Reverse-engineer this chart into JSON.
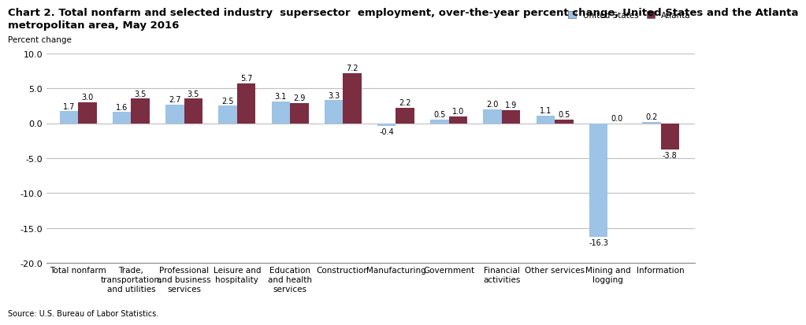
{
  "title_line1": "Chart 2. Total nonfarm and selected industry  supersector  employment, over-the-year percent change, United States and the Atlanta",
  "title_line2": "metropolitan area, May 2016",
  "ylabel": "Percent change",
  "source": "Source: U.S. Bureau of Labor Statistics.",
  "categories": [
    "Total nonfarm",
    "Trade,\ntransportation,\nand utilities",
    "Professional\nand business\nservices",
    "Leisure and\nhospitality",
    "Education\nand health\nservices",
    "Construction",
    "Manufacturing",
    "Government",
    "Financial\nactivities",
    "Other services",
    "Mining and\nlogging",
    "Information"
  ],
  "us_values": [
    1.7,
    1.6,
    2.7,
    2.5,
    3.1,
    3.3,
    -0.4,
    0.5,
    2.0,
    1.1,
    -16.3,
    0.2
  ],
  "atl_values": [
    3.0,
    3.5,
    3.5,
    5.7,
    2.9,
    7.2,
    2.2,
    1.0,
    1.9,
    0.5,
    0.0,
    -3.8
  ],
  "us_color": "#9dc3e6",
  "atl_color": "#7b2d42",
  "ylim": [
    -20.0,
    10.0
  ],
  "yticks": [
    -20.0,
    -15.0,
    -10.0,
    -5.0,
    0.0,
    5.0,
    10.0
  ],
  "legend_us": "United States",
  "legend_atl": "Atlanta",
  "bar_width": 0.35,
  "grid_color": "#c0c0c0",
  "background_color": "#ffffff",
  "title_fontsize": 9.5,
  "axis_fontsize": 7.5,
  "tick_fontsize": 8,
  "label_fontsize": 7.0
}
